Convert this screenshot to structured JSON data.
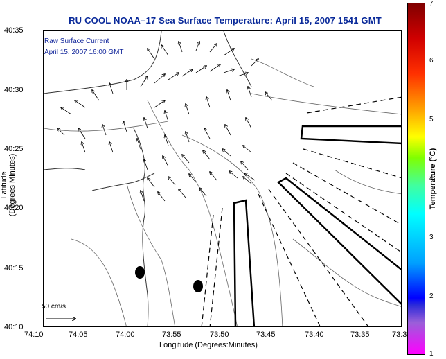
{
  "title": "RU COOL  NOAA–17  Sea Surface Temperature:  April 15, 2007 1541 GMT",
  "notes": {
    "line1": "Raw Surface Current",
    "line2": "April 15, 2007 16:00 GMT"
  },
  "scale_label": "50 cm/s",
  "x_axis": {
    "title": "Longitude (Degrees:Minutes)",
    "ticks": [
      "74:10",
      "74:05",
      "74:00",
      "73:55",
      "73:50",
      "73:45",
      "73:40",
      "73:35",
      "73:3"
    ]
  },
  "y_axis": {
    "title": "Latitude (Degrees:Minutes)",
    "ticks": [
      "40:35",
      "40:30",
      "40:25",
      "40:20",
      "40:15",
      "40:10"
    ]
  },
  "colorbar": {
    "title": "Temperature (°C)",
    "ticks": [
      "7",
      "6",
      "5",
      "4",
      "3",
      "2",
      "1"
    ]
  },
  "colors": {
    "title": "#0a2a9a",
    "notes": "#14289c"
  },
  "map_features": [
    "coastline",
    "bathymetry-contours",
    "current-vectors",
    "shipping-lane-markers",
    "buoy-markers"
  ]
}
